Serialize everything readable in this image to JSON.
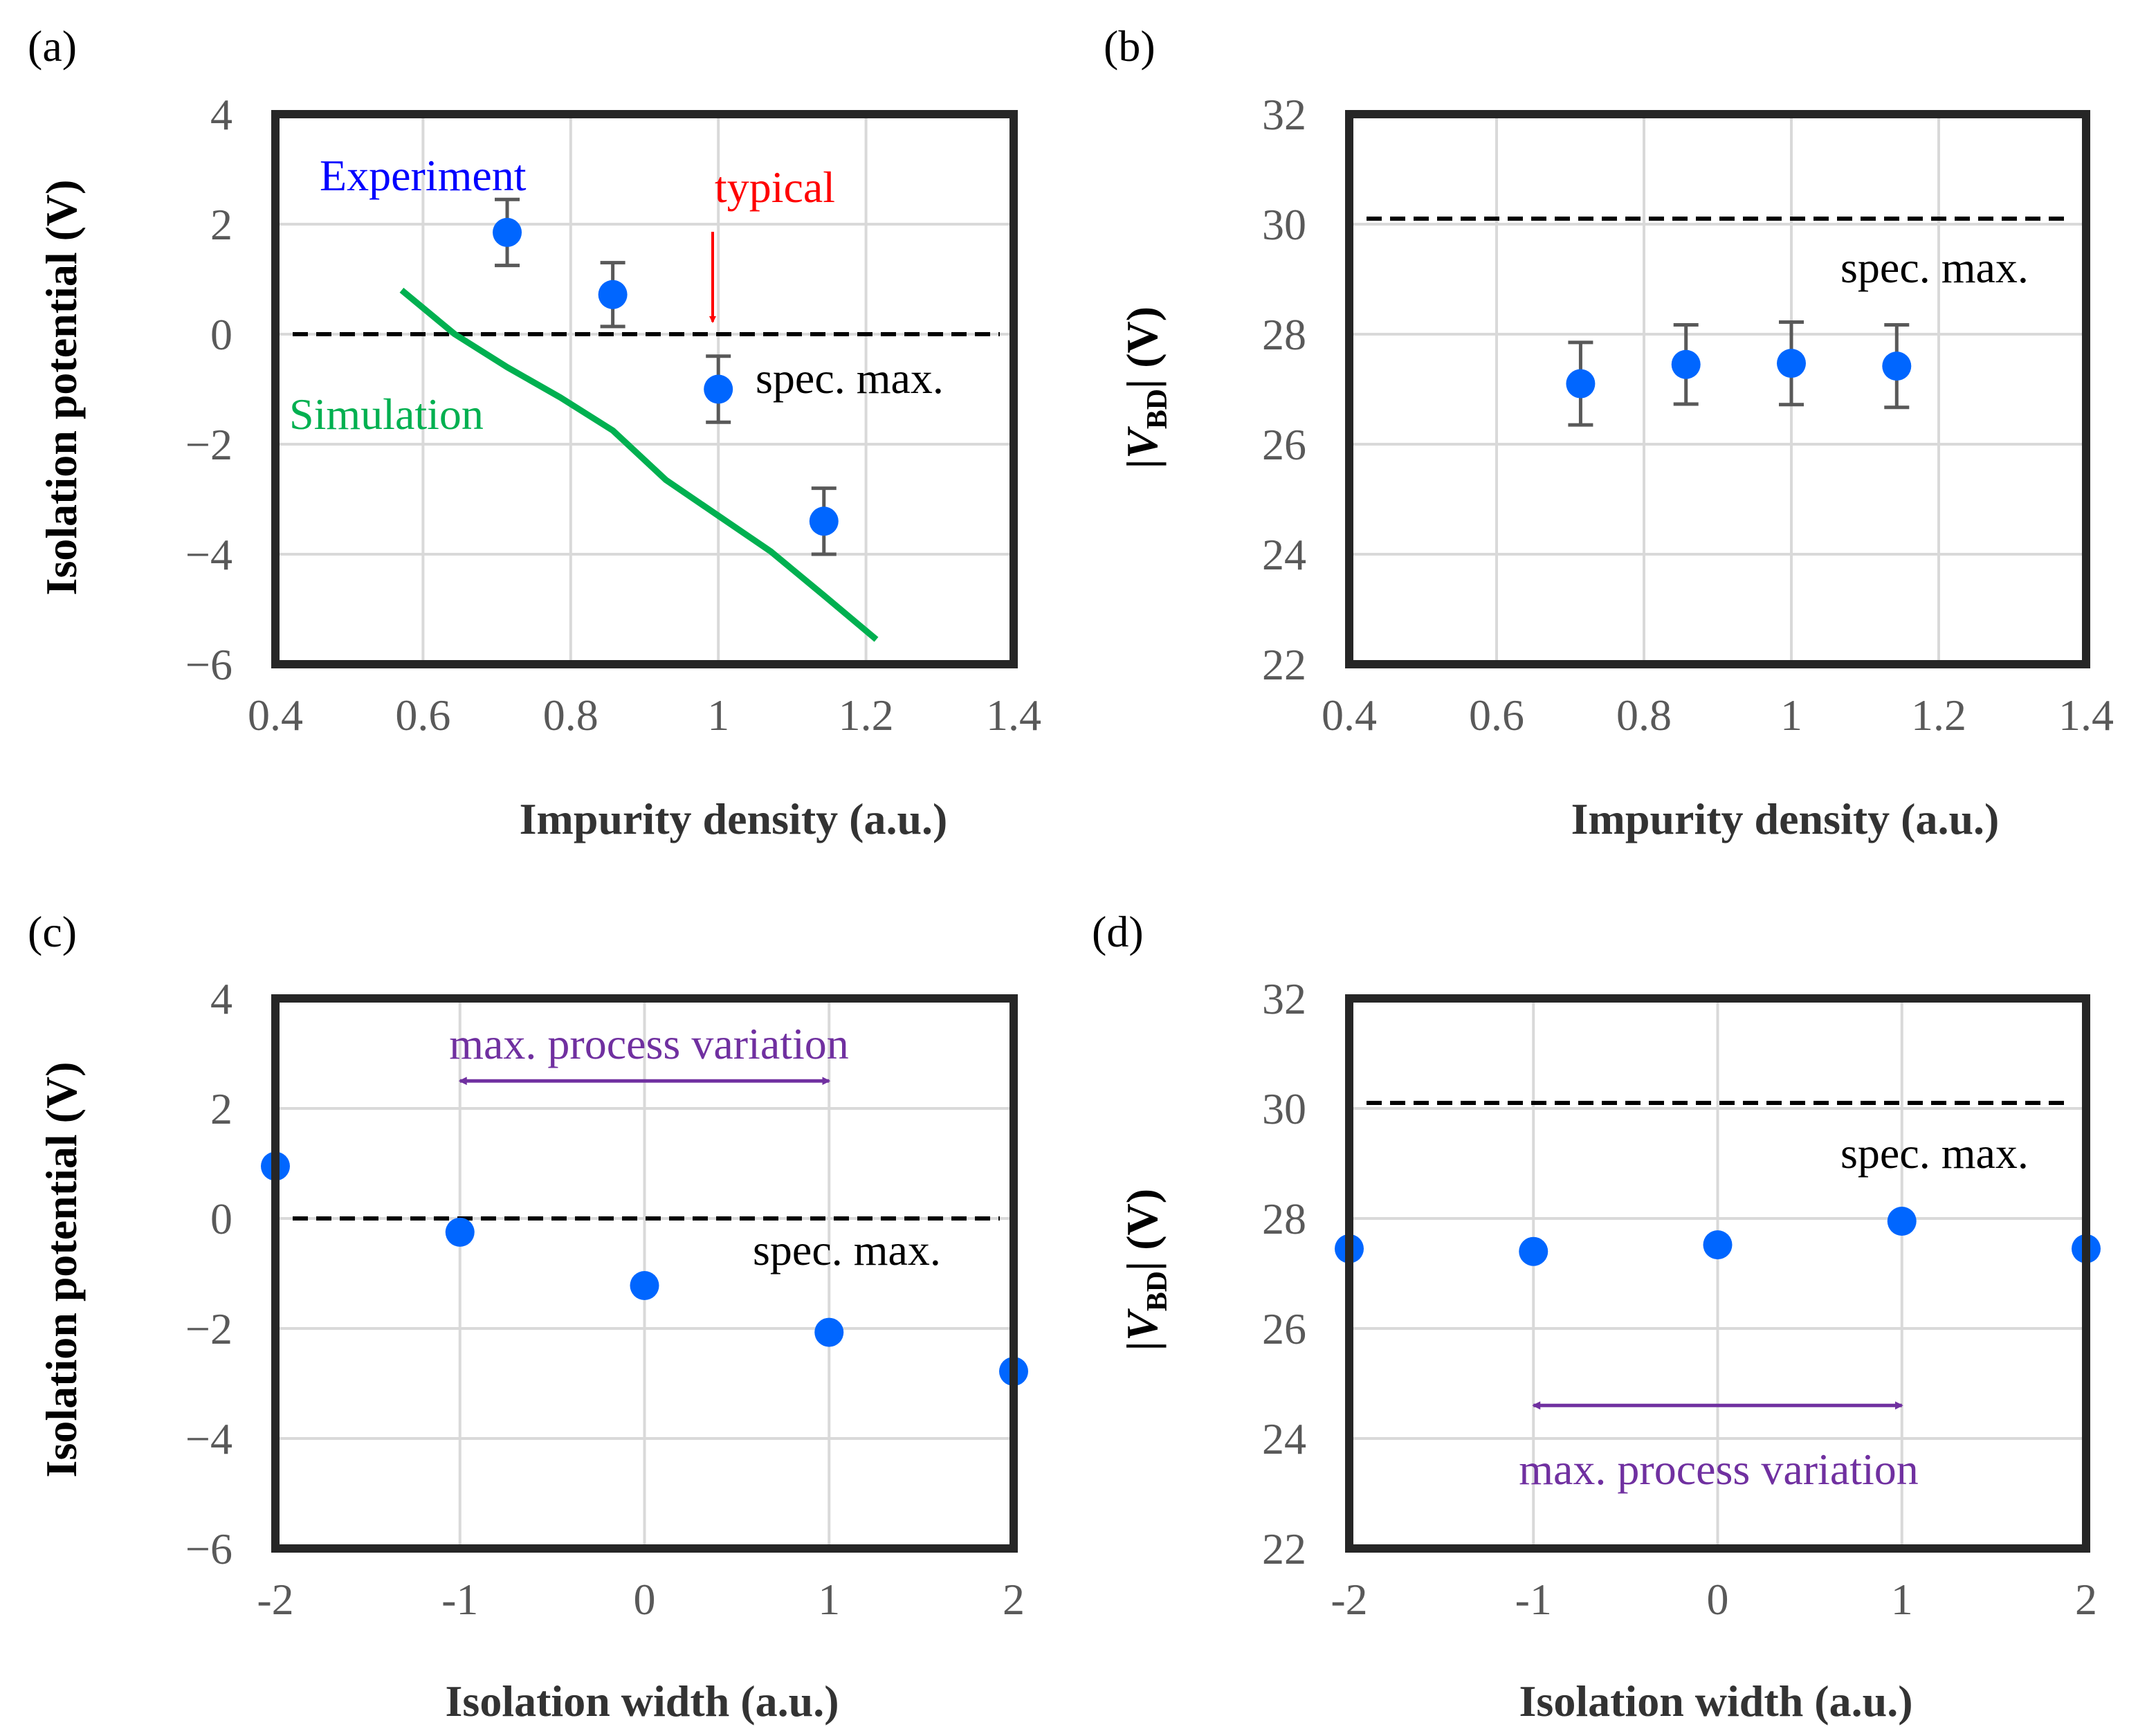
{
  "figure": {
    "type": "2x2 panel figure"
  },
  "chart_data": [
    {
      "panel": "a",
      "panel_label": "(a)",
      "type": "scatter",
      "xlabel": "Impurity  density (a.u.)",
      "ylabel": "Isolation potential (V)",
      "xlim": [
        0.4,
        1.4
      ],
      "ylim": [
        -6,
        4
      ],
      "xticks": [
        0.4,
        0.6,
        0.8,
        1.0,
        1.2,
        1.4
      ],
      "yticks": [
        -6,
        -4,
        -2,
        0,
        2,
        4
      ],
      "xtick_labels": [
        "0.4",
        "0.6",
        "0.8",
        "1",
        "1.2",
        "1.4"
      ],
      "ytick_labels": [
        "−6",
        "−4",
        "−2",
        "0",
        "2",
        "4"
      ],
      "grid": true,
      "series": [
        {
          "name": "Experiment",
          "kind": "points_with_errorbars",
          "color": "#0066ff",
          "x": [
            0.714,
            0.857,
            1.0,
            1.143
          ],
          "y": [
            1.85,
            0.72,
            -1.0,
            -3.4
          ],
          "err": [
            0.6,
            0.58,
            0.6,
            0.6
          ]
        },
        {
          "name": "Simulation",
          "kind": "line",
          "color": "#00b050",
          "x": [
            0.571,
            0.643,
            0.714,
            0.786,
            0.857,
            0.929,
            1.0,
            1.071,
            1.143,
            1.214
          ],
          "y": [
            0.8,
            0.0,
            -0.6,
            -1.15,
            -1.75,
            -2.65,
            -3.3,
            -3.95,
            -4.75,
            -5.55
          ]
        }
      ],
      "hline": {
        "y": 0,
        "color": "#000000"
      },
      "annotations": {
        "experiment_label": "Experiment",
        "simulation_label": "Simulation",
        "spec_label": "spec. max.",
        "typical_label": "typical",
        "typical_x": 1.0,
        "experiment_color": "#0000ff",
        "simulation_color": "#00b050",
        "typical_color": "#ff0000"
      }
    },
    {
      "panel": "b",
      "panel_label": "(b)",
      "type": "scatter",
      "xlabel": "Impurity  density (a.u.)",
      "ylabel_main": "|V",
      "ylabel_sub": "BD",
      "ylabel_tail": "| (V)",
      "xlim": [
        0.4,
        1.4
      ],
      "ylim": [
        22,
        32
      ],
      "xticks": [
        0.4,
        0.6,
        0.8,
        1.0,
        1.2,
        1.4
      ],
      "yticks": [
        22,
        24,
        26,
        28,
        30,
        32
      ],
      "xtick_labels": [
        "0.4",
        "0.6",
        "0.8",
        "1",
        "1.2",
        "1.4"
      ],
      "ytick_labels": [
        "22",
        "24",
        "26",
        "28",
        "30",
        "32"
      ],
      "grid": true,
      "series": [
        {
          "name": "VBD",
          "kind": "points_with_errorbars",
          "color": "#0066ff",
          "x": [
            0.714,
            0.857,
            1.0,
            1.143
          ],
          "y": [
            27.1,
            27.45,
            27.47,
            27.42
          ],
          "err": [
            0.75,
            0.72,
            0.75,
            0.75
          ]
        }
      ],
      "hline": {
        "y": 30.1,
        "color": "#000000"
      },
      "annotations": {
        "spec_label": "spec. max."
      }
    },
    {
      "panel": "c",
      "panel_label": "(c)",
      "type": "scatter",
      "xlabel": "Isolation width (a.u.)",
      "ylabel": "Isolation potential (V)",
      "xlim": [
        -2,
        2
      ],
      "ylim": [
        -6,
        4
      ],
      "xticks": [
        -2,
        -1,
        0,
        1,
        2
      ],
      "yticks": [
        -6,
        -4,
        -2,
        0,
        2,
        4
      ],
      "xtick_labels": [
        "-2",
        "-1",
        "0",
        "1",
        "2"
      ],
      "ytick_labels": [
        "−6",
        "−4",
        "−2",
        "0",
        "2",
        "4"
      ],
      "grid": true,
      "series": [
        {
          "name": "Isolation potential",
          "kind": "points",
          "color": "#0066ff",
          "x": [
            -2,
            -1,
            0,
            1,
            2
          ],
          "y": [
            0.95,
            -0.25,
            -1.22,
            -2.07,
            -2.78
          ]
        }
      ],
      "hline": {
        "y": 0,
        "color": "#000000"
      },
      "annotations": {
        "spec_label": "spec. max.",
        "variation_label": "max.  process variation",
        "variation_color": "#7030a0",
        "arrow_from": -1,
        "arrow_to": 1,
        "arrow_y": 2.5
      }
    },
    {
      "panel": "d",
      "panel_label": "(d)",
      "type": "scatter",
      "xlabel": "Isolation width (a.u.)",
      "ylabel_main": "|V",
      "ylabel_sub": "BD",
      "ylabel_tail": "| (V)",
      "xlim": [
        -2,
        2
      ],
      "ylim": [
        22,
        32
      ],
      "xticks": [
        -2,
        -1,
        0,
        1,
        2
      ],
      "yticks": [
        22,
        24,
        26,
        28,
        30,
        32
      ],
      "xtick_labels": [
        "-2",
        "-1",
        "0",
        "1",
        "2"
      ],
      "ytick_labels": [
        "22",
        "24",
        "26",
        "28",
        "30",
        "32"
      ],
      "grid": true,
      "series": [
        {
          "name": "VBD",
          "kind": "points",
          "color": "#0066ff",
          "x": [
            -2,
            -1,
            0,
            1,
            2
          ],
          "y": [
            27.45,
            27.4,
            27.52,
            27.95,
            27.45
          ]
        }
      ],
      "hline": {
        "y": 30.1,
        "color": "#000000"
      },
      "annotations": {
        "spec_label": "spec. max.",
        "variation_label": "max.  process variation",
        "variation_color": "#7030a0",
        "arrow_from": -1,
        "arrow_to": 1,
        "arrow_y": 24.6
      }
    }
  ]
}
